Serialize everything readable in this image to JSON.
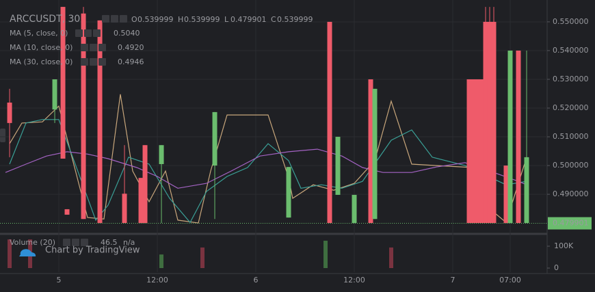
{
  "chart_data": {
    "type": "candlestick",
    "title": "ARCCUSDT, 30",
    "ohlc": [
      {
        "key": "O",
        "value": 0.539999
      },
      {
        "key": "H",
        "value": 0.539999
      },
      {
        "key": "L",
        "value": 0.479901
      },
      {
        "key": "C",
        "value": 0.539999
      }
    ],
    "up_color": "#6bbd6e",
    "down_color": "#ef5b6a",
    "xlim": [
      -7.17,
      59.5
    ],
    "xticks": [
      {
        "value": 0,
        "label": "5"
      },
      {
        "value": 12,
        "label": "12:00"
      },
      {
        "value": 24,
        "label": "6"
      },
      {
        "value": 36,
        "label": "12:00"
      },
      {
        "value": 48,
        "label": "7"
      },
      {
        "value": 55,
        "label": "07:00"
      }
    ],
    "ylim": [
      0.4767,
      0.5576
    ],
    "yticks": [
      {
        "value": 0.55,
        "label": "0.550000"
      },
      {
        "value": 0.54,
        "label": "0.540000"
      },
      {
        "value": 0.53,
        "label": "0.530000"
      },
      {
        "value": 0.52,
        "label": "0.520000"
      },
      {
        "value": 0.51,
        "label": "0.510000"
      },
      {
        "value": 0.5,
        "label": "0.500000"
      },
      {
        "value": 0.49,
        "label": "0.490000"
      }
    ],
    "grid": true,
    "last_price": 0.479901,
    "x": [
      -6,
      -0.5,
      0.5,
      1,
      3,
      5,
      8,
      10,
      10.5,
      12.5,
      19,
      28,
      33,
      34,
      36,
      38,
      38.5,
      50,
      50.5,
      51,
      51.5,
      52,
      52.5,
      53,
      54.5,
      55,
      56,
      57
    ],
    "open": [
      0.5219,
      0.5195,
      0.5552,
      0.4848,
      0.5529,
      0.5505,
      0.4902,
      0.4957,
      0.5071,
      0.5005,
      0.5,
      0.4819,
      0.55,
      0.4898,
      0.48,
      0.53,
      0.4814,
      0.53,
      0.53,
      0.53,
      0.53,
      0.55,
      0.55,
      0.55,
      0.5,
      0.48,
      0.54,
      0.48
    ],
    "high": [
      0.5267,
      0.53,
      0.5552,
      0.4848,
      0.5552,
      0.5505,
      0.5071,
      0.4957,
      0.5071,
      0.5071,
      0.5186,
      0.4995,
      0.55,
      0.51,
      0.4898,
      0.53,
      0.5267,
      0.53,
      0.53,
      0.53,
      0.53,
      0.5552,
      0.5552,
      0.5552,
      0.5,
      0.54,
      0.54,
      0.54
    ],
    "low": [
      0.5029,
      0.5148,
      0.5024,
      0.4829,
      0.4814,
      0.48,
      0.48,
      0.48,
      0.48,
      0.48,
      0.4814,
      0.4819,
      0.48,
      0.4898,
      0.48,
      0.48,
      0.4814,
      0.48,
      0.48,
      0.48,
      0.48,
      0.48,
      0.48,
      0.48,
      0.48,
      0.48,
      0.48,
      0.48
    ],
    "close": [
      0.5148,
      0.53,
      0.5024,
      0.4829,
      0.4814,
      0.48,
      0.48,
      0.48,
      0.48,
      0.5071,
      0.5186,
      0.4995,
      0.48,
      0.51,
      0.4898,
      0.48,
      0.5267,
      0.48,
      0.48,
      0.48,
      0.48,
      0.48,
      0.48,
      0.48,
      0.48,
      0.54,
      0.48,
      0.5029
    ],
    "series": [
      {
        "name": "MA (5, close, 0)",
        "color": "#c9a77c",
        "value_label": "0.5040",
        "x": [
          -6,
          -4.5,
          -2,
          0,
          1.5,
          3.5,
          5.5,
          7.5,
          9,
          11,
          13,
          14.5,
          17,
          18.5,
          20.5,
          25.5,
          28,
          28.5,
          31,
          33.5,
          36,
          38.5,
          40.5,
          43,
          46,
          50.5,
          53,
          54.5,
          57
        ],
        "values": [
          0.5076,
          0.5148,
          0.5152,
          0.5207,
          0.504,
          0.4819,
          0.4814,
          0.5248,
          0.4981,
          0.4874,
          0.4981,
          0.481,
          0.48,
          0.4981,
          0.5176,
          0.5176,
          0.4957,
          0.4886,
          0.4933,
          0.4914,
          0.4938,
          0.5017,
          0.5224,
          0.5005,
          0.5,
          0.4993,
          0.4838,
          0.4802,
          0.5029
        ]
      },
      {
        "name": "MA (10, close, 0)",
        "color": "#3a9f96",
        "value_label": "0.4920",
        "x": [
          -6,
          -4,
          -2,
          0,
          2,
          4.5,
          6,
          8.5,
          11,
          13.5,
          16,
          18,
          20.5,
          23,
          25.5,
          28,
          29.5,
          32,
          34.5,
          37,
          40.5,
          43,
          45.5,
          49.5,
          54.5,
          57
        ],
        "values": [
          0.5005,
          0.5148,
          0.516,
          0.516,
          0.5005,
          0.481,
          0.4862,
          0.5029,
          0.5005,
          0.4886,
          0.4802,
          0.491,
          0.4962,
          0.4993,
          0.5076,
          0.5017,
          0.4921,
          0.4933,
          0.4921,
          0.4945,
          0.5088,
          0.5124,
          0.5029,
          0.5,
          0.4933,
          0.4945
        ]
      },
      {
        "name": "MA (30, close, 0)",
        "color": "#a463c4",
        "value_label": "0.4946",
        "x": [
          -6.5,
          -4,
          -1.5,
          1,
          3.5,
          6,
          9.5,
          12,
          14.5,
          18,
          21,
          24.5,
          28,
          31.5,
          34.5,
          37,
          39.5,
          43,
          46,
          49.5,
          53,
          56,
          57
        ],
        "values": [
          0.4976,
          0.5005,
          0.5033,
          0.5048,
          0.504,
          0.5024,
          0.4993,
          0.4962,
          0.4921,
          0.4938,
          0.4981,
          0.5033,
          0.5048,
          0.5057,
          0.5033,
          0.4993,
          0.4976,
          0.4976,
          0.4995,
          0.501,
          0.4976,
          0.4945,
          0.4933
        ]
      }
    ],
    "volume": {
      "label": "Volume (20)",
      "value_label": "46.5",
      "extra": "n/a",
      "ylim": [
        -18750,
        146875
      ],
      "yticks": [
        0,
        {
          "value": 100000,
          "label": "100K"
        }
      ],
      "x": [
        -6,
        -3.5,
        12.5,
        17.5,
        32.5,
        40.5
      ],
      "values": [
        131000,
        131000,
        62000,
        94000,
        125000,
        94000
      ],
      "colors": [
        "#7a3340",
        "#7a3340",
        "#3f6e40",
        "#7a3340",
        "#3f6e40",
        "#7a3340"
      ]
    },
    "watermark": "Chart by TradingView"
  }
}
